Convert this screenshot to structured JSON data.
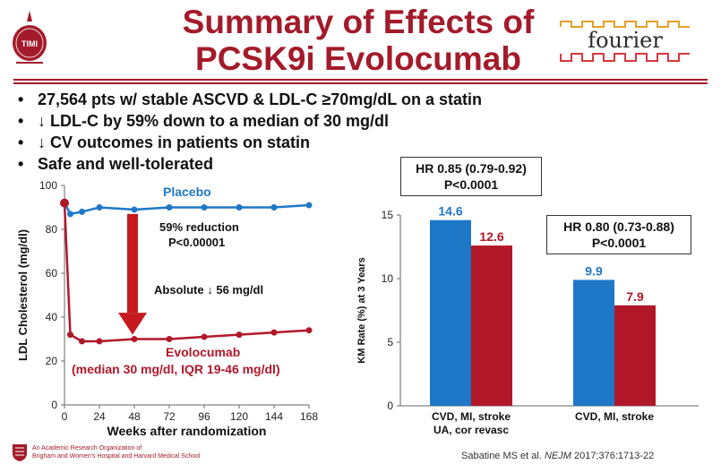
{
  "slide": {
    "title_line1": "Summary of Effects of",
    "title_line2": "PCSK9i Evolocumab",
    "logo_left_text": "TIMI",
    "logo_right_text": "fourier",
    "bullets": [
      "27,564 pts w/ stable ASCVD & LDL-C ≥70mg/dL on a statin",
      "↓ LDL-C by 59% down to a median of 30 mg/dl",
      "↓ CV outcomes in patients on statin",
      "Safe and well-tolerated"
    ],
    "bullet_symbol": "•",
    "footer_org_line1": "An Academic Research Organization of",
    "footer_org_line2": "Brigham and Women's Hospital and Harvard Medical School",
    "citation_pre": "Sabatine MS et al. ",
    "citation_journal": "NEJM",
    "citation_post": " 2017;376:1713-22",
    "colors": {
      "accent": "#a31b2b",
      "blue": "#1f77c8",
      "red": "#b0182a"
    }
  },
  "chart_data": [
    {
      "type": "line",
      "xlabel": "Weeks after randomization",
      "ylabel": "LDL Cholesterol (mg/dl)",
      "xticks": [
        0,
        24,
        48,
        72,
        96,
        120,
        144,
        168
      ],
      "yticks": [
        0,
        20,
        40,
        60,
        80,
        100
      ],
      "xlim": [
        0,
        168
      ],
      "ylim": [
        0,
        100
      ],
      "series": [
        {
          "name": "Placebo",
          "color": "#1f77c8",
          "x": [
            0,
            4,
            12,
            24,
            48,
            72,
            96,
            120,
            144,
            168
          ],
          "y": [
            92,
            87,
            88,
            90,
            89,
            90,
            90,
            90,
            90,
            91
          ]
        },
        {
          "name": "Evolocumab",
          "color": "#b0182a",
          "x": [
            0,
            4,
            12,
            24,
            48,
            72,
            96,
            120,
            144,
            168
          ],
          "y": [
            92,
            32,
            29,
            29,
            30,
            30,
            31,
            32,
            33,
            34
          ]
        }
      ],
      "annotations": {
        "placebo_label": "Placebo",
        "reduction": "59% reduction",
        "reduction_p": "P<0.00001",
        "absolute": "Absolute ↓ 56 mg/dl",
        "evolocumab_label": "Evolocumab",
        "evolocumab_sub": "(median 30 mg/dl, IQR 19-46 mg/dl)"
      }
    },
    {
      "type": "bar",
      "ylabel": "KM Rate (%) at 3 Years",
      "ylim": [
        0,
        15
      ],
      "yticks": [
        0,
        5,
        10,
        15
      ],
      "categories": [
        "CVD, MI, stroke\nUA, cor revasc",
        "CVD, MI, stroke"
      ],
      "series": [
        {
          "color": "#1f77c8",
          "values": [
            14.6,
            9.9
          ]
        },
        {
          "color": "#b0182a",
          "values": [
            12.6,
            7.9
          ]
        }
      ],
      "value_labels": [
        [
          "14.6",
          "12.6"
        ],
        [
          "9.9",
          "7.9"
        ]
      ],
      "hr_boxes": [
        {
          "hr": "HR 0.85 (0.79-0.92)",
          "p": "P<0.0001"
        },
        {
          "hr": "HR 0.80 (0.73-0.88)",
          "p": "P<0.0001"
        }
      ]
    }
  ]
}
